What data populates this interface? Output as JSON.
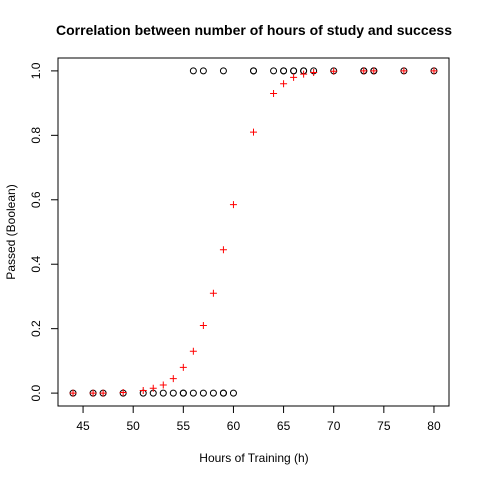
{
  "chart_data": {
    "type": "scatter",
    "title": "Correlation between number of hours of study and success",
    "xlabel": "Hours of Training (h)",
    "ylabel": "Passed (Boolean)",
    "xlim": [
      42.5,
      81.5
    ],
    "ylim": [
      -0.04,
      1.04
    ],
    "xticks": [
      45,
      50,
      55,
      60,
      65,
      70,
      75,
      80
    ],
    "yticks": [
      0.0,
      0.2,
      0.4,
      0.6,
      0.8,
      1.0
    ],
    "xtick_labels": [
      "45",
      "50",
      "55",
      "60",
      "65",
      "70",
      "75",
      "80"
    ],
    "ytick_labels": [
      "0.0",
      "0.2",
      "0.4",
      "0.6",
      "0.8",
      "1.0"
    ],
    "grid": false,
    "series": [
      {
        "marker": "circle-open",
        "color": "#000000",
        "x": [
          44,
          46,
          47,
          49,
          51,
          52,
          53,
          54,
          55,
          55,
          56,
          57,
          58,
          59,
          59,
          60,
          56,
          57,
          59,
          62,
          64,
          65,
          66,
          67,
          68,
          70,
          73,
          74,
          77,
          80,
          62,
          65,
          66,
          67,
          73,
          74
        ],
        "y": [
          0,
          0,
          0,
          0,
          0,
          0,
          0,
          0,
          0,
          0,
          0,
          0,
          0,
          0,
          0,
          0,
          1,
          1,
          1,
          1,
          1,
          1,
          1,
          1,
          1,
          1,
          1,
          1,
          1,
          1,
          1,
          1,
          1,
          1,
          1,
          1
        ]
      },
      {
        "marker": "plus",
        "color": "#ff0000",
        "x": [
          44,
          46,
          47,
          49,
          51,
          52,
          53,
          54,
          55,
          56,
          57,
          58,
          59,
          60,
          62,
          64,
          65,
          66,
          67,
          68,
          70,
          73,
          74,
          77,
          80
        ],
        "y": [
          0.0,
          0.0,
          0.0,
          0.002,
          0.008,
          0.015,
          0.025,
          0.045,
          0.08,
          0.13,
          0.21,
          0.31,
          0.445,
          0.585,
          0.81,
          0.93,
          0.96,
          0.98,
          0.99,
          0.995,
          0.999,
          1.0,
          1.0,
          1.0,
          1.0
        ]
      }
    ]
  }
}
